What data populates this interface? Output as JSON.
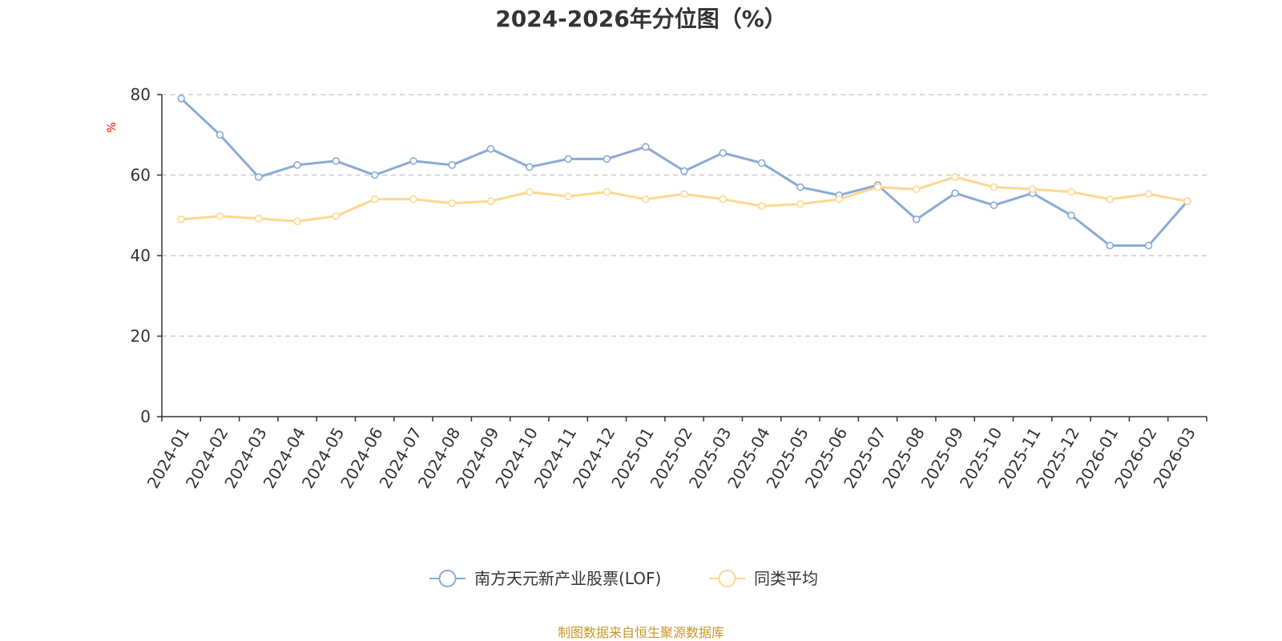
{
  "chart_data": {
    "type": "line",
    "title": "2024-2026年分位图（%）",
    "ylabel": "%",
    "xlabel": "",
    "ylim": [
      0,
      80
    ],
    "yticks": [
      0,
      20,
      40,
      60,
      80
    ],
    "grid": true,
    "legend_position": "bottom-center",
    "categories": [
      "2024-01",
      "2024-02",
      "2024-03",
      "2024-04",
      "2024-05",
      "2024-06",
      "2024-07",
      "2024-08",
      "2024-09",
      "2024-10",
      "2024-11",
      "2024-12",
      "2025-01",
      "2025-02",
      "2025-03",
      "2025-04",
      "2025-05",
      "2025-06",
      "2025-07",
      "2025-08",
      "2025-09",
      "2025-10",
      "2025-11",
      "2025-12",
      "2026-01",
      "2026-02",
      "2026-03"
    ],
    "series": [
      {
        "name": "南方天元新产业股票(LOF)",
        "color": "#8aaad6",
        "values": [
          79,
          70,
          59.5,
          62.5,
          63.5,
          60,
          63.5,
          62.5,
          66.5,
          62,
          64,
          64,
          67,
          61,
          65.5,
          63,
          57,
          55,
          57.5,
          49,
          55.5,
          52.5,
          55.5,
          50,
          42.5,
          42.5,
          53.5
        ]
      },
      {
        "name": "同类平均",
        "color": "#fdd890",
        "values": [
          49,
          49.8,
          49.2,
          48.5,
          49.8,
          54,
          54,
          53,
          53.5,
          55.8,
          54.7,
          55.8,
          54,
          55.3,
          54,
          52.3,
          52.8,
          54,
          57,
          56.5,
          59.5,
          57,
          56.5,
          55.8,
          54,
          55.3,
          53.5
        ]
      }
    ]
  },
  "source_note": "制图数据来自恒生聚源数据库"
}
